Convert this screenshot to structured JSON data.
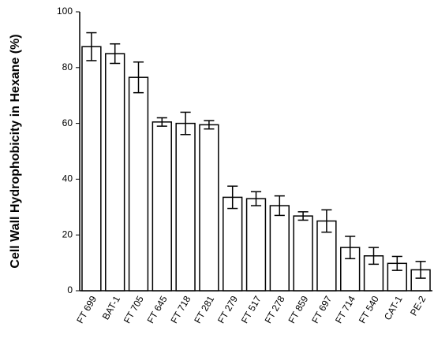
{
  "chart_data": {
    "type": "bar",
    "y_label": "Cell Wall Hydrophobicity in Hexane (%)",
    "categories": [
      "FT 699",
      "BAT-1",
      "FT 705",
      "FT 645",
      "FT 718",
      "FT 281",
      "FT 279",
      "FT 517",
      "FT 278",
      "FT 859",
      "FT 697",
      "FT 714",
      "FT 540",
      "CAT-1",
      "PE-2"
    ],
    "values": [
      87.5,
      85,
      76.5,
      60.5,
      60,
      59.5,
      33.5,
      33,
      30.5,
      26.8,
      25,
      15.5,
      12.5,
      9.8,
      7.5
    ],
    "errors": [
      5,
      3.5,
      5.5,
      1.5,
      4,
      1.5,
      4,
      2.5,
      3.5,
      1.5,
      4,
      4,
      3,
      2.5,
      3
    ],
    "color": "#ffffff",
    "ylim": [
      0,
      100
    ],
    "yticks": [
      0,
      20,
      40,
      60,
      80,
      100
    ],
    "grid": false
  }
}
